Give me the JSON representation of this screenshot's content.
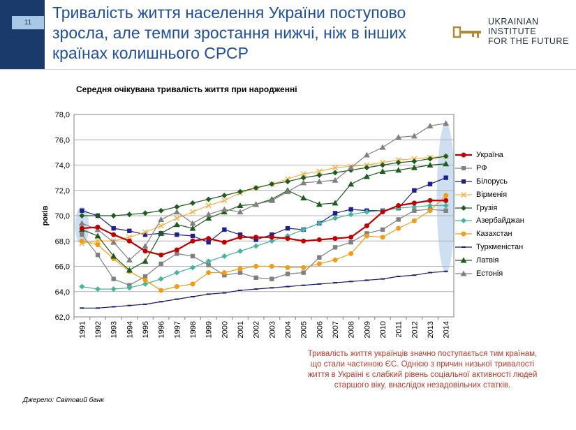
{
  "header": {
    "page_number": "11",
    "title": "Тривалість життя населення України поступово зросла, але темпи зростання нижчі, ніж в інших країнах колишнього СРСР",
    "logo_line1": "Ukrainian",
    "logo_line2": "Institute",
    "logo_line3": "for the Future"
  },
  "chart_data": {
    "type": "line",
    "title": "Середня очікувана тривалість життя при народженні",
    "xlabel": "",
    "ylabel": "років",
    "ylim": [
      62,
      78
    ],
    "yticks": [
      "62,0",
      "64,0",
      "66,0",
      "68,0",
      "70,0",
      "72,0",
      "74,0",
      "76,0",
      "78,0"
    ],
    "categories": [
      "1991",
      "1992",
      "1993",
      "1994",
      "1995",
      "1996",
      "1997",
      "1998",
      "1999",
      "2000",
      "2001",
      "2002",
      "2003",
      "2004",
      "2005",
      "2006",
      "2007",
      "2008",
      "2009",
      "2010",
      "2011",
      "2012",
      "2013",
      "2014"
    ],
    "series": [
      {
        "name": "Україна",
        "color": "#c00000",
        "marker": "circle",
        "values": [
          69.0,
          69.1,
          68.5,
          68.0,
          67.2,
          66.9,
          67.3,
          68.0,
          68.2,
          67.9,
          68.3,
          68.3,
          68.3,
          68.2,
          68.0,
          68.1,
          68.2,
          68.3,
          69.2,
          70.3,
          70.8,
          71.0,
          71.2,
          71.2
        ]
      },
      {
        "name": "РФ",
        "color": "#808080",
        "marker": "square",
        "values": [
          68.5,
          66.9,
          65.0,
          64.5,
          65.2,
          66.2,
          67.0,
          66.8,
          66.1,
          65.3,
          65.5,
          65.1,
          65.0,
          65.4,
          65.5,
          66.7,
          67.5,
          67.9,
          68.6,
          68.9,
          69.7,
          70.4,
          70.5,
          70.4
        ]
      },
      {
        "name": "Білорусь",
        "color": "#1f1f8f",
        "marker": "square",
        "values": [
          70.4,
          70.0,
          69.0,
          68.8,
          68.5,
          68.6,
          68.5,
          68.4,
          67.9,
          68.9,
          68.5,
          68.1,
          68.5,
          69.0,
          68.9,
          69.4,
          70.2,
          70.5,
          70.4,
          70.4,
          70.6,
          72.0,
          72.5,
          73.0
        ]
      },
      {
        "name": "Вірменія",
        "color": "#f5b041",
        "marker": "x",
        "values": [
          67.8,
          68.0,
          68.0,
          68.3,
          68.7,
          69.2,
          69.8,
          70.3,
          70.8,
          71.2,
          71.8,
          72.2,
          72.5,
          72.9,
          73.3,
          73.5,
          73.8,
          73.9,
          74.0,
          74.2,
          74.4,
          74.5,
          74.6,
          74.7
        ]
      },
      {
        "name": "Грузія",
        "color": "#1e5b1e",
        "marker": "diamond",
        "values": [
          70.0,
          70.0,
          70.0,
          70.1,
          70.2,
          70.4,
          70.7,
          71.0,
          71.3,
          71.6,
          71.9,
          72.2,
          72.5,
          72.7,
          73.0,
          73.2,
          73.4,
          73.6,
          73.8,
          74.0,
          74.2,
          74.3,
          74.5,
          74.7
        ]
      },
      {
        "name": "Азербайджан",
        "color": "#45b39d",
        "marker": "diamond",
        "values": [
          64.4,
          64.2,
          64.2,
          64.3,
          64.6,
          65.0,
          65.5,
          65.9,
          66.4,
          66.8,
          67.2,
          67.6,
          68.0,
          68.4,
          68.9,
          69.4,
          69.8,
          70.1,
          70.3,
          70.4,
          70.6,
          70.7,
          70.8,
          70.8
        ]
      },
      {
        "name": "Казахстан",
        "color": "#f39c12",
        "marker": "circle",
        "values": [
          68.0,
          67.7,
          66.6,
          65.6,
          64.9,
          64.1,
          64.4,
          64.6,
          65.5,
          65.5,
          65.8,
          66.0,
          66.0,
          65.9,
          65.9,
          66.2,
          66.5,
          67.0,
          68.4,
          68.3,
          69.0,
          69.6,
          70.4,
          71.6
        ]
      },
      {
        "name": "Туркменістан",
        "color": "#1a1a6e",
        "marker": "dash",
        "values": [
          62.7,
          62.7,
          62.8,
          62.9,
          63.0,
          63.2,
          63.4,
          63.6,
          63.8,
          63.9,
          64.1,
          64.2,
          64.3,
          64.4,
          64.5,
          64.6,
          64.7,
          64.8,
          64.9,
          65.0,
          65.2,
          65.3,
          65.5,
          65.6
        ]
      },
      {
        "name": "Латвія",
        "color": "#1e5b1e",
        "marker": "triangle",
        "values": [
          68.9,
          68.4,
          66.8,
          65.7,
          66.4,
          68.6,
          69.3,
          69.0,
          69.8,
          70.3,
          70.8,
          70.9,
          71.3,
          72.0,
          71.4,
          70.9,
          71.0,
          72.5,
          73.1,
          73.5,
          73.6,
          73.8,
          74.0,
          74.1
        ]
      },
      {
        "name": "Естонія",
        "color": "#808080",
        "marker": "triangle",
        "values": [
          69.4,
          68.9,
          67.9,
          66.5,
          67.6,
          69.7,
          70.3,
          69.4,
          70.1,
          70.5,
          70.3,
          70.9,
          71.2,
          71.9,
          72.6,
          72.7,
          72.8,
          73.8,
          74.8,
          75.4,
          76.2,
          76.3,
          77.1,
          77.3
        ]
      }
    ]
  },
  "note": "Тривалість життя українців значно поступається тим країнам, що стали частиною ЄС. Однією з причин низької тривалості життя в Україні є слабкий рівень соціальної активності людей старшого віку, внаслідок незадовільних статків.",
  "source": "Джерело: Світовий банк"
}
